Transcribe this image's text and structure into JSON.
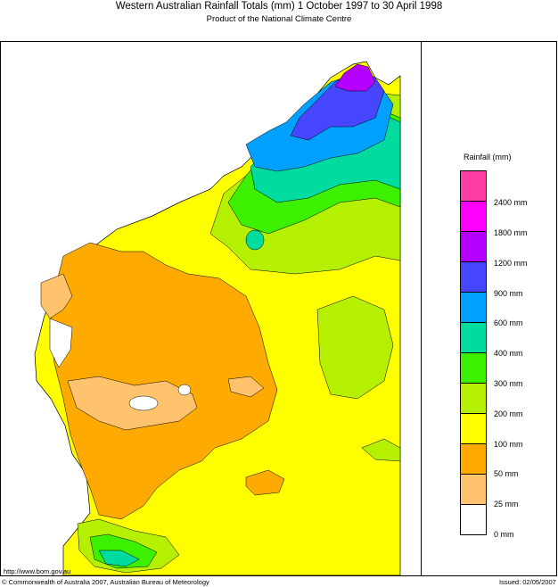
{
  "title": "Western Australian Rainfall Totals (mm) 1 October 1997 to 30 April 1998",
  "subtitle": "Product of the National Climate Centre",
  "legend": {
    "title": "Rainfall (mm)",
    "classes": [
      {
        "color": "#ff3ea5"
      },
      {
        "color": "#ff00ff",
        "label": "2400 mm"
      },
      {
        "color": "#b400ff",
        "label": "1800 mm"
      },
      {
        "color": "#4646ff",
        "label": "1200 mm"
      },
      {
        "color": "#00a0ff",
        "label": "900 mm"
      },
      {
        "color": "#00dca0",
        "label": "600 mm"
      },
      {
        "color": "#3cf000",
        "label": "400 mm"
      },
      {
        "color": "#b4f000",
        "label": "300 mm"
      },
      {
        "color": "#ffff00",
        "label": "200 mm"
      },
      {
        "color": "#ffaa00",
        "label": "100 mm"
      },
      {
        "color": "#ffc36e",
        "label": "50 mm"
      },
      {
        "color": "#ffffff",
        "label": "25 mm"
      },
      {
        "label": "0 mm"
      }
    ]
  },
  "footer": {
    "url": "http://www.bom.gov.au",
    "copyright": "© Commonwealth of Australia 2007, Australian Bureau of Meteorology",
    "issued": "Issued: 02/05/2007"
  }
}
